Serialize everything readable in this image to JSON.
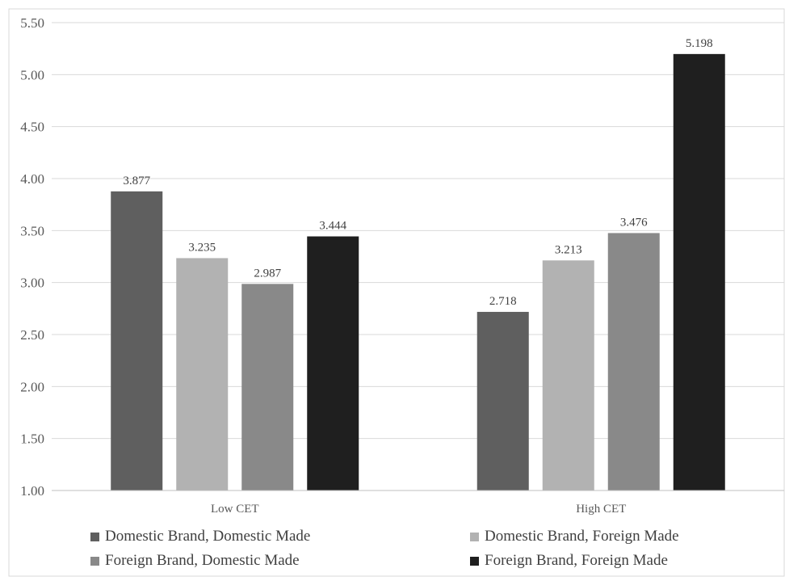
{
  "chart_data": {
    "type": "bar",
    "categories": [
      "Low CET",
      "High CET"
    ],
    "series": [
      {
        "name": "Domestic Brand, Domestic Made",
        "values": [
          3.877,
          2.718
        ],
        "color": "#5f5f5f"
      },
      {
        "name": "Domestic Brand, Foreign Made",
        "values": [
          3.235,
          3.213
        ],
        "color": "#b2b2b2"
      },
      {
        "name": "Foreign Brand, Domestic Made",
        "values": [
          2.987,
          3.476
        ],
        "color": "#898989"
      },
      {
        "name": "Foreign Brand, Foreign Made",
        "values": [
          3.444,
          5.198
        ],
        "color": "#1f1f1f"
      }
    ],
    "data_labels": [
      [
        "3.877",
        "2.718"
      ],
      [
        "3.235",
        "3.213"
      ],
      [
        "2.987",
        "3.476"
      ],
      [
        "3.444",
        "5.198"
      ]
    ],
    "y_ticks": [
      "1.00",
      "1.50",
      "2.00",
      "2.50",
      "3.00",
      "3.50",
      "4.00",
      "4.50",
      "5.00",
      "5.50"
    ],
    "ylim": [
      1.0,
      5.5
    ],
    "grid": true,
    "legend_position": "bottom",
    "title": "",
    "xlabel": "",
    "ylabel": ""
  }
}
